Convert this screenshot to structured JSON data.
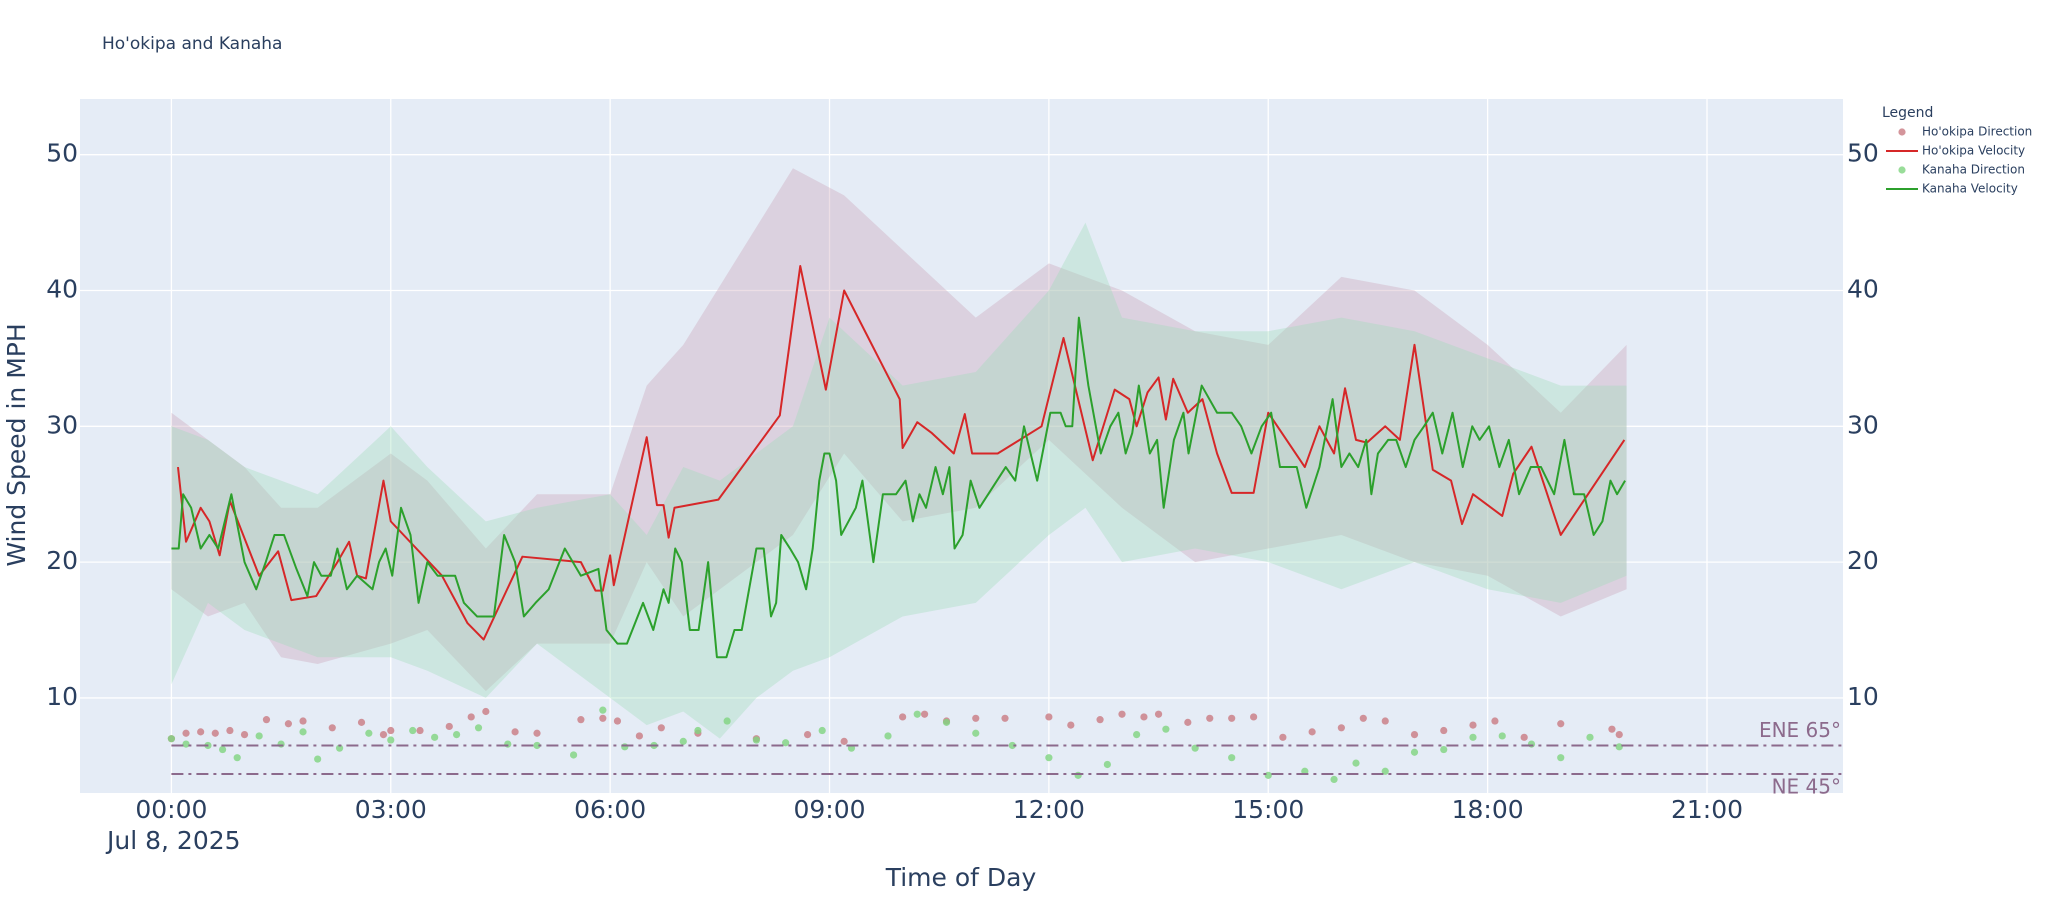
{
  "chart_data": {
    "type": "line",
    "title": "Ho'okipa and Kanaha",
    "x_label": "Time of Day",
    "x_date_label": "Jul 8, 2025",
    "y_label": "Wind Speed in MPH",
    "xlim": [
      -1.25,
      22.86
    ],
    "xticks": [
      {
        "value": 0,
        "label": "00:00"
      },
      {
        "value": 3,
        "label": "03:00"
      },
      {
        "value": 6,
        "label": "06:00"
      },
      {
        "value": 9,
        "label": "09:00"
      },
      {
        "value": 12,
        "label": "12:00"
      },
      {
        "value": 15,
        "label": "15:00"
      },
      {
        "value": 18,
        "label": "18:00"
      },
      {
        "value": 21,
        "label": "21:00"
      }
    ],
    "ylim": [
      3,
      54.1
    ],
    "yticks": [
      10,
      20,
      30,
      40,
      50
    ],
    "y2lim": [
      3,
      54.1
    ],
    "y2ticks": [
      10,
      20,
      30,
      40,
      50
    ],
    "grid": true,
    "legend_title": "Legend",
    "legend_position": "right",
    "series": [
      {
        "name": "Ho'okipa Direction",
        "type": "scatter",
        "color": "#c97a82",
        "x": [
          0,
          0.2,
          0.4,
          0.6,
          0.8,
          1.0,
          1.3,
          1.6,
          1.8,
          2.2,
          2.6,
          2.9,
          3.0,
          3.4,
          3.8,
          4.1,
          4.3,
          4.7,
          5.0,
          5.6,
          5.9,
          6.1,
          6.4,
          6.7,
          7.2,
          8.0,
          8.7,
          9.2,
          10.0,
          10.3,
          10.6,
          11.0,
          11.4,
          12.0,
          12.3,
          12.7,
          13.0,
          13.3,
          13.5,
          13.9,
          14.2,
          14.5,
          14.8,
          15.2,
          15.6,
          16.0,
          16.3,
          16.6,
          17.0,
          17.4,
          17.8,
          18.1,
          18.5,
          19.0,
          19.7,
          19.8
        ],
        "values": [
          7,
          7.4,
          7.5,
          7.4,
          7.6,
          7.3,
          8.4,
          8.1,
          8.3,
          7.8,
          8.2,
          7.3,
          7.6,
          7.6,
          7.9,
          8.6,
          9,
          7.5,
          7.4,
          8.4,
          8.5,
          8.3,
          7.2,
          7.8,
          7.4,
          7,
          7.3,
          6.8,
          8.6,
          8.8,
          8.3,
          8.5,
          8.5,
          8.6,
          8,
          8.4,
          8.8,
          8.6,
          8.8,
          8.2,
          8.5,
          8.5,
          8.6,
          7.1,
          7.5,
          7.8,
          8.5,
          8.3,
          7.3,
          7.6,
          8,
          8.3,
          7.1,
          8.1,
          7.7,
          7.3
        ]
      },
      {
        "name": "Ho'okipa Velocity",
        "type": "line",
        "color": "#d62728",
        "x": [
          0.09,
          0.2,
          0.4,
          0.52,
          0.66,
          0.8,
          1.2,
          1.46,
          1.64,
          1.98,
          2.27,
          2.43,
          2.54,
          2.66,
          2.9,
          3.0,
          3.7,
          4.05,
          4.27,
          4.8,
          5.6,
          5.8,
          5.9,
          6.0,
          6.05,
          6.5,
          6.64,
          6.73,
          6.8,
          6.88,
          7.48,
          8.32,
          8.6,
          8.95,
          9.2,
          9.96,
          10.0,
          10.2,
          10.4,
          10.7,
          10.85,
          10.95,
          11.3,
          11.9,
          12.2,
          12.6,
          12.9,
          13.1,
          13.2,
          13.35,
          13.5,
          13.6,
          13.7,
          13.9,
          14.1,
          14.3,
          14.5,
          14.8,
          15.0,
          15.5,
          15.7,
          15.9,
          16.05,
          16.2,
          16.35,
          16.6,
          16.8,
          17.0,
          17.25,
          17.5,
          17.65,
          17.8,
          18.2,
          18.35,
          18.6,
          19.0,
          19.87
        ],
        "values": [
          27,
          21.5,
          24,
          23,
          20.5,
          24.5,
          19,
          20.8,
          17.2,
          17.5,
          20,
          21.5,
          19,
          18.8,
          26,
          23,
          19,
          15.5,
          14.3,
          20.4,
          20,
          17.9,
          17.9,
          20.5,
          18.3,
          29.2,
          24.2,
          24.2,
          21.8,
          24,
          24.6,
          30.8,
          41.8,
          32.7,
          40,
          32,
          28.4,
          30.3,
          29.5,
          28,
          30.9,
          28,
          28,
          30,
          36.5,
          27.5,
          32.7,
          32,
          30,
          32.5,
          33.6,
          30.5,
          33.5,
          31,
          32,
          28,
          25.1,
          25.1,
          31,
          27,
          30,
          28,
          32.8,
          29,
          28.8,
          30,
          29,
          36,
          26.8,
          26,
          22.8,
          25,
          23.4,
          26.5,
          28.5,
          22,
          29
        ],
        "band": {
          "color": "#c9a0b5",
          "x": [
            0,
            0.5,
            1,
            1.5,
            2,
            3,
            3.5,
            4.3,
            5,
            6,
            6.5,
            7,
            8.5,
            9.2,
            10,
            11,
            12,
            13,
            14,
            15,
            16,
            17,
            18,
            19,
            19.9
          ],
          "high": [
            31,
            29,
            27,
            24,
            24,
            28,
            26,
            21,
            25,
            25,
            33,
            36,
            49,
            47,
            43,
            38,
            42,
            40,
            37,
            36,
            41,
            40,
            36,
            31,
            36
          ],
          "low": [
            18,
            16,
            17,
            13,
            12.5,
            14,
            15,
            10.5,
            14,
            14,
            20,
            16,
            22,
            28,
            23,
            24,
            29,
            24,
            20,
            21,
            22,
            20,
            19,
            16,
            18
          ]
        }
      },
      {
        "name": "Kanaha Direction",
        "type": "scatter",
        "color": "#7fd47f",
        "x": [
          0,
          0.2,
          0.5,
          0.7,
          0.9,
          1.2,
          1.5,
          1.8,
          2.0,
          2.3,
          2.7,
          3.0,
          3.3,
          3.6,
          3.9,
          4.2,
          4.6,
          5.0,
          5.5,
          5.9,
          6.2,
          6.6,
          7.0,
          7.2,
          7.6,
          8.0,
          8.4,
          8.9,
          9.3,
          9.8,
          10.2,
          10.6,
          11.0,
          11.5,
          12.0,
          12.4,
          12.8,
          13.2,
          13.6,
          14.0,
          14.5,
          15.0,
          15.5,
          15.9,
          16.2,
          16.6,
          17.0,
          17.4,
          17.8,
          18.2,
          18.6,
          19.0,
          19.4,
          19.8
        ],
        "values": [
          7,
          6.6,
          6.5,
          6.2,
          5.6,
          7.2,
          6.6,
          7.5,
          5.5,
          6.3,
          7.4,
          6.9,
          7.6,
          7.1,
          7.3,
          7.8,
          6.6,
          6.5,
          5.8,
          9.1,
          6.4,
          6.5,
          6.8,
          7.6,
          8.3,
          6.9,
          6.7,
          7.6,
          6.3,
          7.2,
          8.8,
          8.2,
          7.4,
          6.5,
          5.6,
          4.3,
          5.1,
          7.3,
          7.7,
          6.3,
          5.6,
          4.3,
          4.6,
          4,
          5.2,
          4.6,
          6,
          6.2,
          7.1,
          7.2,
          6.6,
          5.6,
          7.1,
          6.4
        ]
      },
      {
        "name": "Kanaha Velocity",
        "type": "line",
        "color": "#2ca02c",
        "x": [
          0,
          0.1,
          0.16,
          0.27,
          0.4,
          0.52,
          0.64,
          0.82,
          1.0,
          1.16,
          1.29,
          1.41,
          1.54,
          1.71,
          1.86,
          1.95,
          2.05,
          2.18,
          2.27,
          2.4,
          2.54,
          2.75,
          2.84,
          2.93,
          3.02,
          3.14,
          3.27,
          3.38,
          3.5,
          3.64,
          3.88,
          4.0,
          4.18,
          4.41,
          4.55,
          4.7,
          4.82,
          4.98,
          5.16,
          5.38,
          5.6,
          5.84,
          5.95,
          6.1,
          6.23,
          6.45,
          6.59,
          6.73,
          6.8,
          6.89,
          6.98,
          7.09,
          7.21,
          7.34,
          7.46,
          7.59,
          7.7,
          7.8,
          8.0,
          8.1,
          8.2,
          8.27,
          8.34,
          8.46,
          8.57,
          8.68,
          8.77,
          8.86,
          8.93,
          9.0,
          9.09,
          9.16,
          9.36,
          9.45,
          9.6,
          9.73,
          9.91,
          10.04,
          10.14,
          10.23,
          10.32,
          10.45,
          10.55,
          10.64,
          10.71,
          10.82,
          10.93,
          11.05,
          11.41,
          11.54,
          11.66,
          11.84,
          12.02,
          12.16,
          12.23,
          12.32,
          12.41,
          12.54,
          12.71,
          12.84,
          12.95,
          13.05,
          13.14,
          13.23,
          13.38,
          13.48,
          13.57,
          13.71,
          13.84,
          13.91,
          14.09,
          14.3,
          14.5,
          14.63,
          14.77,
          14.91,
          15.04,
          15.16,
          15.39,
          15.52,
          15.7,
          15.88,
          16.0,
          16.11,
          16.23,
          16.34,
          16.41,
          16.5,
          16.64,
          16.75,
          16.88,
          17.0,
          17.13,
          17.25,
          17.38,
          17.52,
          17.66,
          17.79,
          17.89,
          18.02,
          18.16,
          18.29,
          18.43,
          18.59,
          18.73,
          18.91,
          19.05,
          19.18,
          19.32,
          19.45,
          19.57,
          19.68,
          19.77,
          19.88
        ],
        "values": [
          21,
          21,
          25,
          24,
          21,
          22,
          21,
          25,
          20,
          18,
          20,
          22,
          22,
          19.5,
          17.5,
          20,
          19,
          19,
          21,
          18,
          19,
          18,
          20,
          21,
          19,
          24,
          22,
          17,
          20,
          19,
          19,
          17,
          16,
          16,
          22,
          20,
          16,
          17,
          18,
          21,
          19,
          19.5,
          15,
          14,
          14,
          17,
          15,
          18,
          17,
          21,
          20,
          15,
          15,
          20,
          13,
          13,
          15,
          15,
          21,
          21,
          16,
          17,
          22,
          21,
          20,
          18,
          21,
          26,
          28,
          28,
          26,
          22,
          24,
          26,
          20,
          25,
          25,
          26,
          23,
          25,
          24,
          27,
          25,
          27,
          21,
          22,
          26,
          24,
          27,
          26,
          30,
          26,
          31,
          31,
          30,
          30,
          38,
          33,
          28,
          30,
          31,
          28,
          29.5,
          33,
          28,
          29,
          24,
          29,
          31,
          28,
          33,
          31,
          31,
          30,
          28,
          30,
          31,
          27,
          27,
          24,
          27,
          32,
          27,
          28,
          27,
          29,
          25,
          28,
          29,
          29,
          27,
          29,
          30,
          31,
          28,
          31,
          27,
          30,
          29,
          30,
          27,
          29,
          25,
          27,
          27,
          25,
          29,
          25,
          25,
          22,
          23,
          26,
          25,
          26
        ],
        "band": {
          "color": "#9fdcb8",
          "x": [
            0,
            0.5,
            1,
            1.5,
            2,
            3,
            3.5,
            4.3,
            5,
            6,
            6.5,
            7,
            7.5,
            8,
            8.5,
            9,
            10,
            11,
            12,
            12.5,
            13,
            14,
            15,
            16,
            17,
            18,
            19,
            19.9
          ],
          "high": [
            30,
            29,
            27,
            26,
            25,
            30,
            27,
            23,
            24,
            25,
            22,
            27,
            26,
            28,
            30,
            38,
            33,
            34,
            40,
            45,
            38,
            37,
            37,
            38,
            37,
            35,
            33,
            33
          ],
          "low": [
            11,
            17,
            15,
            14,
            13,
            13,
            12,
            10,
            14,
            10,
            8,
            9,
            7,
            10,
            12,
            13,
            16,
            17,
            22,
            24,
            20,
            21,
            20,
            18,
            20,
            18,
            17,
            19
          ]
        }
      }
    ],
    "reference_lines": [
      {
        "value": 6.5,
        "label": "ENE 65°",
        "label_side": "above"
      },
      {
        "value": 4.4,
        "label": "NE 45°",
        "label_side": "below"
      }
    ],
    "reference_color": "#8c6a8c"
  }
}
